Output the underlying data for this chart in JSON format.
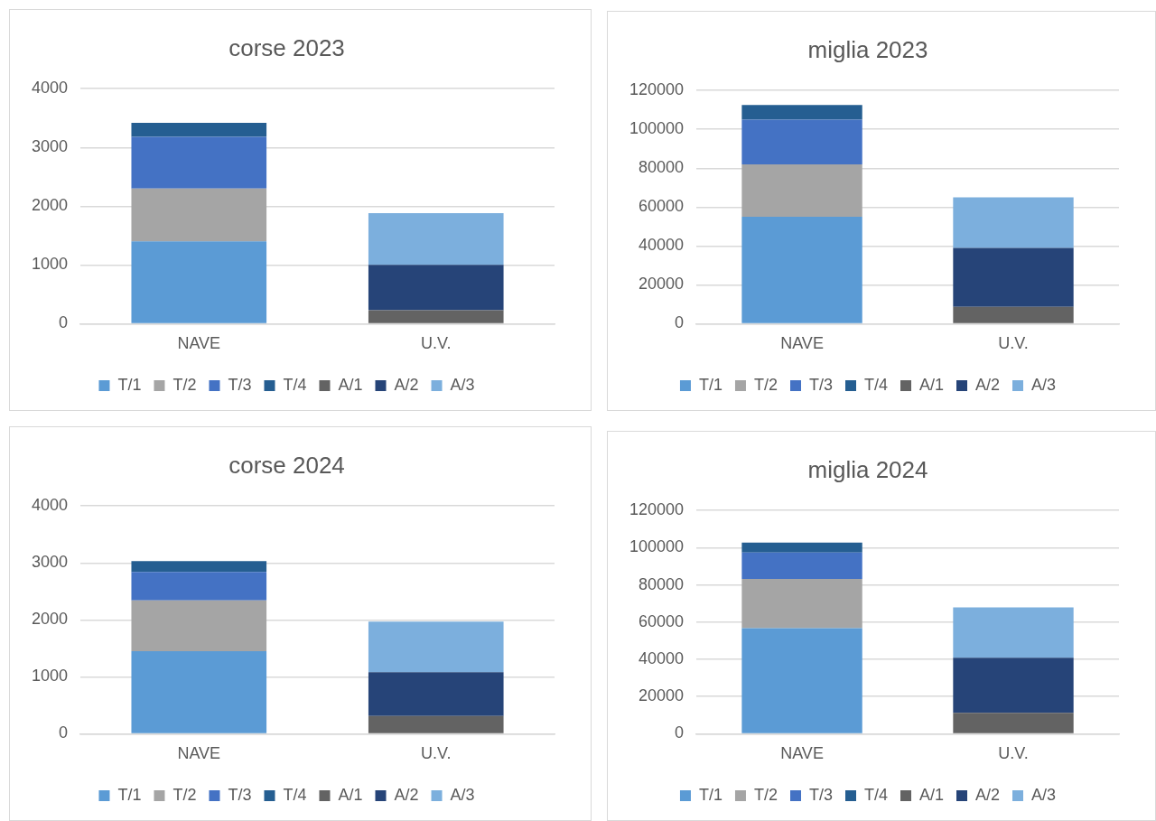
{
  "chart_data": [
    {
      "type": "bar",
      "title": "corse 2023",
      "categories": [
        "NAVE",
        "U.V."
      ],
      "stacked": true,
      "ylim": [
        0,
        4000
      ],
      "yticks": [
        0,
        1000,
        2000,
        3000,
        4000
      ],
      "grid": "y",
      "legend": "bottom",
      "series": [
        {
          "name": "T/1",
          "color": "#5b9bd5",
          "values": [
            1400,
            null
          ]
        },
        {
          "name": "T/2",
          "color": "#a5a5a5",
          "values": [
            900,
            null
          ]
        },
        {
          "name": "T/3",
          "color": "#4472c4",
          "values": [
            880,
            null
          ]
        },
        {
          "name": "T/4",
          "color": "#255e91",
          "values": [
            240,
            null
          ]
        },
        {
          "name": "A/1",
          "color": "#636363",
          "values": [
            null,
            230
          ]
        },
        {
          "name": "A/2",
          "color": "#264478",
          "values": [
            null,
            770
          ]
        },
        {
          "name": "A/3",
          "color": "#7cafdd",
          "values": [
            null,
            880
          ]
        }
      ]
    },
    {
      "type": "bar",
      "title": "miglia 2023",
      "categories": [
        "NAVE",
        "U.V."
      ],
      "stacked": true,
      "ylim": [
        0,
        120000
      ],
      "yticks": [
        0,
        20000,
        40000,
        60000,
        80000,
        100000,
        120000
      ],
      "grid": "y",
      "legend": "bottom",
      "series": [
        {
          "name": "T/1",
          "color": "#5b9bd5",
          "values": [
            55000,
            null
          ]
        },
        {
          "name": "T/2",
          "color": "#a5a5a5",
          "values": [
            27000,
            null
          ]
        },
        {
          "name": "T/3",
          "color": "#4472c4",
          "values": [
            23000,
            null
          ]
        },
        {
          "name": "T/4",
          "color": "#255e91",
          "values": [
            7500,
            null
          ]
        },
        {
          "name": "A/1",
          "color": "#636363",
          "values": [
            null,
            8700
          ]
        },
        {
          "name": "A/2",
          "color": "#264478",
          "values": [
            null,
            30300
          ]
        },
        {
          "name": "A/3",
          "color": "#7cafdd",
          "values": [
            null,
            26000
          ]
        }
      ]
    },
    {
      "type": "bar",
      "title": "corse 2024",
      "categories": [
        "NAVE",
        "U.V."
      ],
      "stacked": true,
      "ylim": [
        0,
        4000
      ],
      "yticks": [
        0,
        1000,
        2000,
        3000,
        4000
      ],
      "grid": "y",
      "legend": "bottom",
      "series": [
        {
          "name": "T/1",
          "color": "#5b9bd5",
          "values": [
            1450,
            null
          ]
        },
        {
          "name": "T/2",
          "color": "#a5a5a5",
          "values": [
            890,
            null
          ]
        },
        {
          "name": "T/3",
          "color": "#4472c4",
          "values": [
            500,
            null
          ]
        },
        {
          "name": "T/4",
          "color": "#255e91",
          "values": [
            190,
            null
          ]
        },
        {
          "name": "A/1",
          "color": "#636363",
          "values": [
            null,
            310
          ]
        },
        {
          "name": "A/2",
          "color": "#264478",
          "values": [
            null,
            770
          ]
        },
        {
          "name": "A/3",
          "color": "#7cafdd",
          "values": [
            null,
            890
          ]
        }
      ]
    },
    {
      "type": "bar",
      "title": "miglia 2024",
      "categories": [
        "NAVE",
        "U.V."
      ],
      "stacked": true,
      "ylim": [
        0,
        120000
      ],
      "yticks": [
        0,
        20000,
        40000,
        60000,
        80000,
        100000,
        120000
      ],
      "grid": "y",
      "legend": "bottom",
      "series": [
        {
          "name": "T/1",
          "color": "#5b9bd5",
          "values": [
            56700,
            null
          ]
        },
        {
          "name": "T/2",
          "color": "#a5a5a5",
          "values": [
            26500,
            null
          ]
        },
        {
          "name": "T/3",
          "color": "#4472c4",
          "values": [
            14200,
            null
          ]
        },
        {
          "name": "T/4",
          "color": "#255e91",
          "values": [
            5400,
            null
          ]
        },
        {
          "name": "A/1",
          "color": "#636363",
          "values": [
            null,
            11200
          ]
        },
        {
          "name": "A/2",
          "color": "#264478",
          "values": [
            null,
            29700
          ]
        },
        {
          "name": "A/3",
          "color": "#7cafdd",
          "values": [
            null,
            27000
          ]
        }
      ]
    }
  ]
}
